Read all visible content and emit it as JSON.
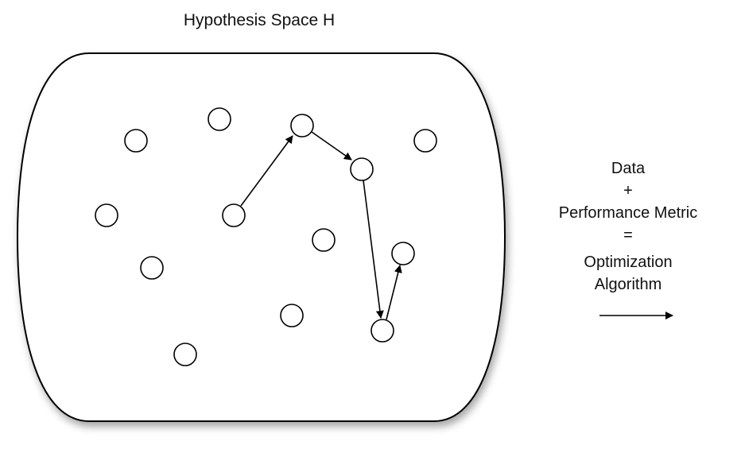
{
  "title": "Hypothesis Space H",
  "legend": {
    "line1": "Data",
    "line2": "+",
    "line3": "Performance Metric",
    "line4": "=",
    "line5": "Optimization",
    "line6": "Algorithm"
  }
}
